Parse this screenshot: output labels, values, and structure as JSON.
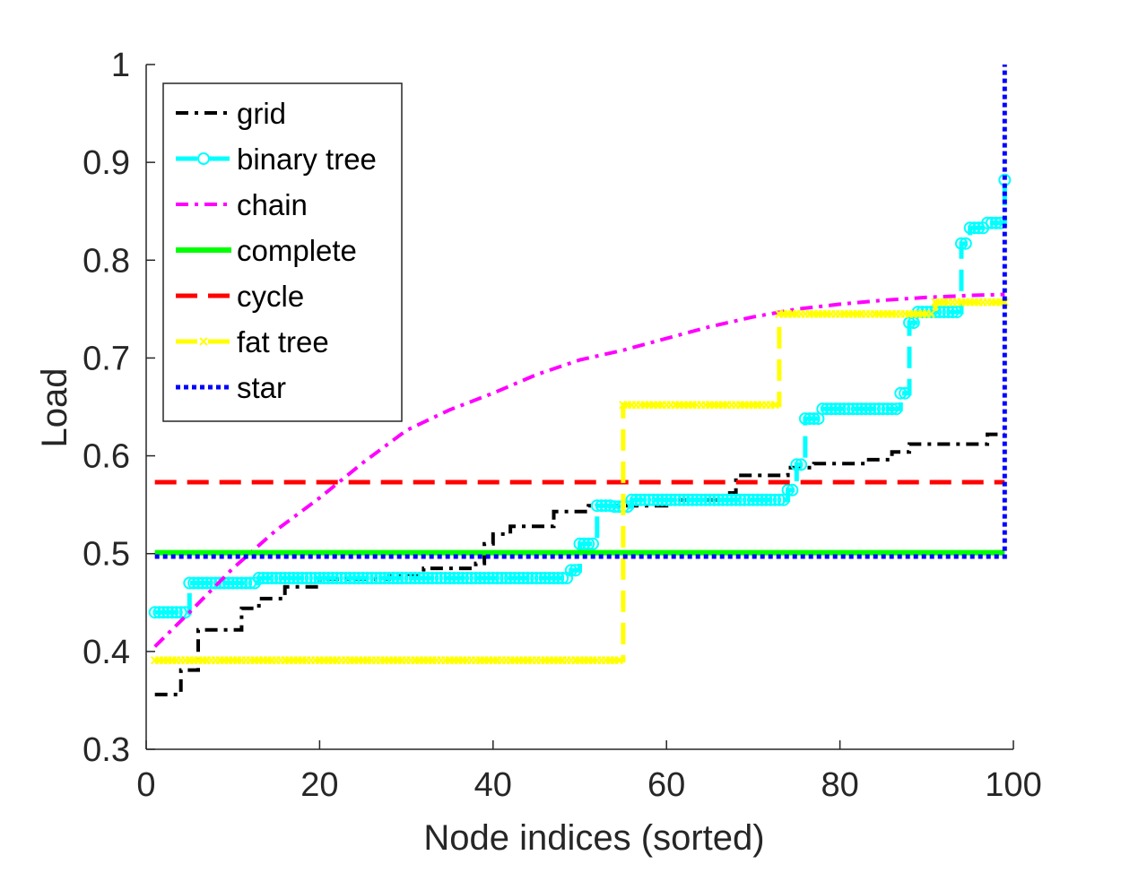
{
  "chart_data": {
    "type": "line",
    "title": "",
    "xlabel": "Node indices (sorted)",
    "ylabel": "Load",
    "xlim": [
      0,
      100
    ],
    "ylim": [
      0.3,
      1
    ],
    "xticks": [
      0,
      20,
      40,
      60,
      80,
      100
    ],
    "xtick_labels": [
      "0",
      "20",
      "40",
      "60",
      "80",
      "100"
    ],
    "yticks": [
      0.3,
      0.4,
      0.5,
      0.6,
      0.7,
      0.8,
      0.9,
      1
    ],
    "ytick_labels": [
      "0.3",
      "0.4",
      "0.5",
      "0.6",
      "0.7",
      "0.8",
      "0.9",
      "1"
    ],
    "grid": false,
    "legend_position": "top-left",
    "series": [
      {
        "name": "grid",
        "color": "#000000",
        "style": "dashdot",
        "marker": "none",
        "type": "step",
        "points": [
          [
            1,
            0.356
          ],
          [
            4,
            0.381
          ],
          [
            6,
            0.422
          ],
          [
            11,
            0.444
          ],
          [
            13,
            0.454
          ],
          [
            16,
            0.466
          ],
          [
            20,
            0.474
          ],
          [
            28,
            0.479
          ],
          [
            32,
            0.485
          ],
          [
            38,
            0.49
          ],
          [
            39,
            0.51
          ],
          [
            40,
            0.52
          ],
          [
            42,
            0.528
          ],
          [
            47,
            0.543
          ],
          [
            51,
            0.549
          ],
          [
            60,
            0.555
          ],
          [
            67,
            0.562
          ],
          [
            68,
            0.58
          ],
          [
            74,
            0.588
          ],
          [
            77,
            0.592
          ],
          [
            83,
            0.596
          ],
          [
            86,
            0.604
          ],
          [
            88,
            0.612
          ],
          [
            97,
            0.622
          ],
          [
            99,
            0.622
          ]
        ]
      },
      {
        "name": "binary tree",
        "color": "#00ffff",
        "style": "dashed",
        "marker": "circle",
        "type": "step",
        "points": [
          [
            1,
            0.44
          ],
          [
            5,
            0.47
          ],
          [
            13,
            0.475
          ],
          [
            49,
            0.483
          ],
          [
            50,
            0.51
          ],
          [
            52,
            0.549
          ],
          [
            54,
            0.548
          ],
          [
            56,
            0.555
          ],
          [
            74,
            0.565
          ],
          [
            75,
            0.591
          ],
          [
            76,
            0.638
          ],
          [
            78,
            0.648
          ],
          [
            87,
            0.664
          ],
          [
            88,
            0.736
          ],
          [
            89,
            0.747
          ],
          [
            94,
            0.817
          ],
          [
            95,
            0.833
          ],
          [
            97,
            0.838
          ],
          [
            98,
            0.838
          ],
          [
            99,
            0.882
          ]
        ]
      },
      {
        "name": "chain",
        "color": "#ff00ff",
        "style": "dashdot",
        "marker": "none",
        "type": "line",
        "points": [
          [
            1,
            0.405
          ],
          [
            5,
            0.44
          ],
          [
            10,
            0.485
          ],
          [
            15,
            0.524
          ],
          [
            20,
            0.557
          ],
          [
            25,
            0.593
          ],
          [
            30,
            0.626
          ],
          [
            35,
            0.647
          ],
          [
            40,
            0.664
          ],
          [
            45,
            0.683
          ],
          [
            50,
            0.698
          ],
          [
            55,
            0.708
          ],
          [
            60,
            0.72
          ],
          [
            65,
            0.732
          ],
          [
            70,
            0.742
          ],
          [
            75,
            0.75
          ],
          [
            80,
            0.755
          ],
          [
            85,
            0.759
          ],
          [
            90,
            0.762
          ],
          [
            95,
            0.764
          ],
          [
            99,
            0.765
          ]
        ]
      },
      {
        "name": "complete",
        "color": "#00ff00",
        "style": "solid",
        "marker": "none",
        "type": "line",
        "points": [
          [
            1,
            0.501
          ],
          [
            99,
            0.501
          ]
        ]
      },
      {
        "name": "cycle",
        "color": "#ff0000",
        "style": "dashed",
        "marker": "none",
        "type": "line",
        "points": [
          [
            1,
            0.573
          ],
          [
            99,
            0.573
          ]
        ]
      },
      {
        "name": "fat tree",
        "color": "#ffff00",
        "style": "dashed",
        "marker": "x",
        "type": "step",
        "points": [
          [
            1,
            0.391
          ],
          [
            54,
            0.391
          ],
          [
            55,
            0.652
          ],
          [
            72,
            0.652
          ],
          [
            73,
            0.745
          ],
          [
            90,
            0.745
          ],
          [
            91,
            0.757
          ],
          [
            99,
            0.757
          ]
        ]
      },
      {
        "name": "star",
        "color": "#0000ff",
        "style": "dotted",
        "marker": "none",
        "type": "step",
        "points": [
          [
            1,
            0.497
          ],
          [
            98,
            0.497
          ],
          [
            99,
            1.0
          ]
        ]
      }
    ]
  }
}
